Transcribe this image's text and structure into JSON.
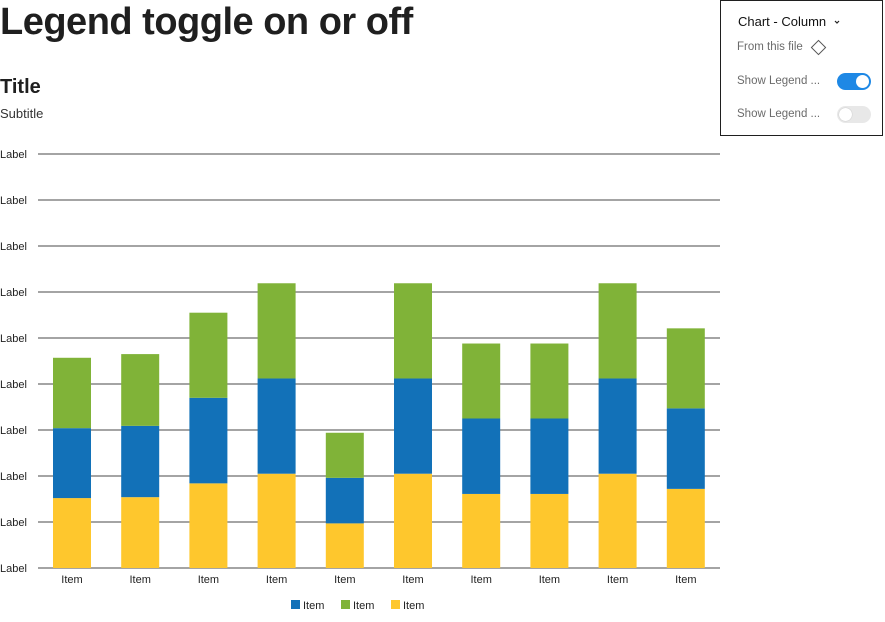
{
  "page": {
    "heading": "Legend toggle on or off"
  },
  "panel": {
    "title": "Chart - Column",
    "source": "From this file",
    "toggles": [
      {
        "label": "Show Legend ...",
        "on": true
      },
      {
        "label": "Show Legend ...",
        "on": false
      }
    ],
    "toggle_on_color": "#1e88e5",
    "toggle_off_color": "#e8e8e8"
  },
  "chart_data": {
    "type": "bar",
    "stacked": true,
    "title": "Title",
    "subtitle": "Subtitle",
    "y_tick_labels": [
      "Label",
      "Label",
      "Label",
      "Label",
      "Label",
      "Label",
      "Label",
      "Label",
      "Label",
      "Label"
    ],
    "ylim": [
      0,
      9
    ],
    "grid": true,
    "legend_position": "bottom",
    "categories": [
      "Item",
      "Item",
      "Item",
      "Item",
      "Item",
      "Item",
      "Item",
      "Item",
      "Item",
      "Item"
    ],
    "series": [
      {
        "name": "Item",
        "color": "#fec72d",
        "values": [
          1.52,
          1.54,
          1.84,
          2.05,
          0.97,
          2.05,
          1.61,
          1.61,
          2.05,
          1.72
        ]
      },
      {
        "name": "Item",
        "color": "#1271b8",
        "values": [
          1.52,
          1.55,
          1.86,
          2.07,
          0.99,
          2.07,
          1.64,
          1.64,
          2.07,
          1.75
        ]
      },
      {
        "name": "Item",
        "color": "#80b338",
        "values": [
          1.53,
          1.56,
          1.85,
          2.07,
          0.98,
          2.07,
          1.63,
          1.63,
          2.07,
          1.74
        ]
      }
    ],
    "legend_order": [
      1,
      2,
      0
    ]
  }
}
